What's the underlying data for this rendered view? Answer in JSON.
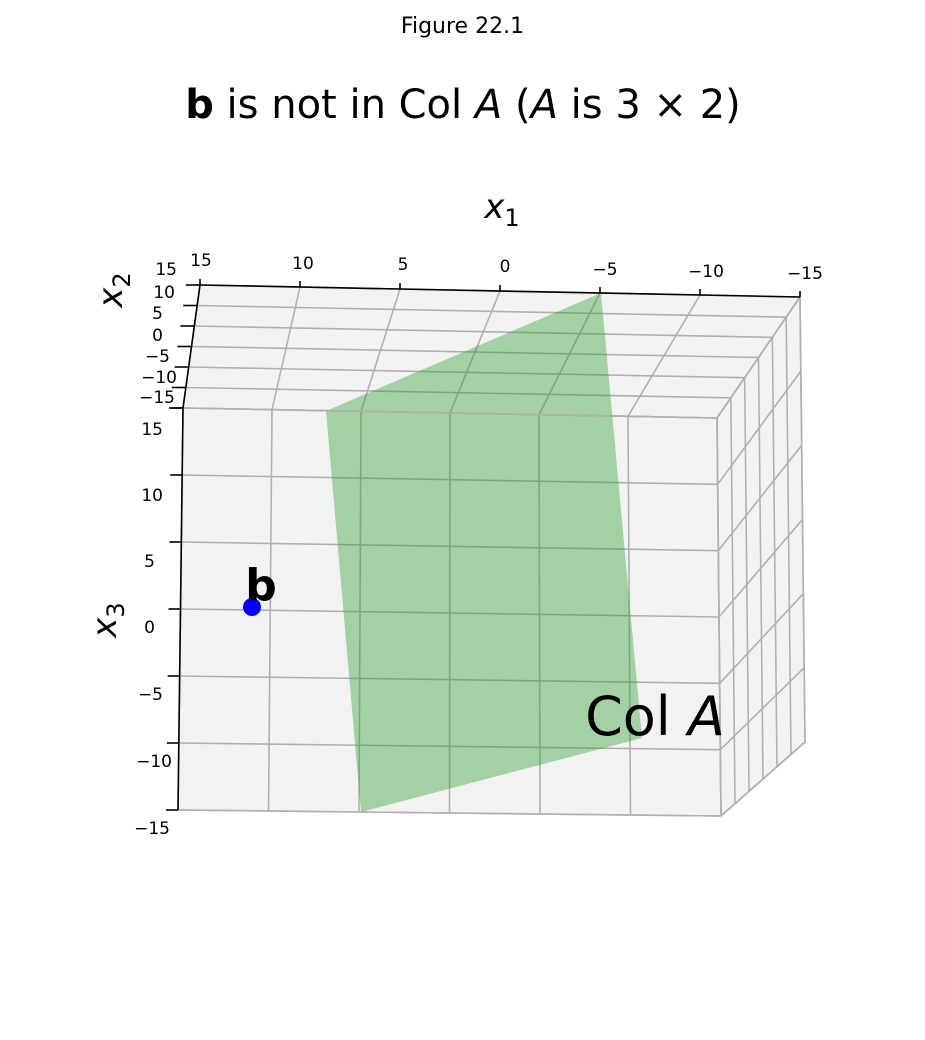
{
  "window": {
    "title": "Figure 22.1"
  },
  "chart_data": {
    "type": "scatter",
    "projection": "3d",
    "title": "b is not in Col A (A is 3 × 2)",
    "title_parts": {
      "vector": "b",
      "middle": " is not in Col ",
      "matrix": "A",
      "open": " (",
      "matrix2": "A",
      "shape": " is 3 × 2)"
    },
    "axes": {
      "x1": {
        "label": "x1",
        "ticks": [
          "15",
          "10",
          "5",
          "0",
          "−5",
          "−10",
          "−15"
        ],
        "lim": [
          -15,
          15
        ],
        "inverted": true
      },
      "x2": {
        "label": "x2",
        "ticks": [
          "15",
          "10",
          "5",
          "0",
          "−5",
          "−10",
          "−15"
        ],
        "lim": [
          -15,
          15
        ]
      },
      "x3": {
        "label": "x3",
        "ticks": [
          "15",
          "10",
          "5",
          "0",
          "−5",
          "−10",
          "−15"
        ],
        "lim": [
          -15,
          15
        ]
      }
    },
    "grid": true,
    "points": [
      {
        "label": "b",
        "color": "#0000ff"
      }
    ],
    "plane": {
      "label_prefix": "Col ",
      "label_matrix": "A",
      "color": "#2ca02c",
      "alpha": 0.4
    },
    "label_vars": {
      "x": "x",
      "sub1": "1",
      "sub2": "2",
      "sub3": "3"
    }
  }
}
